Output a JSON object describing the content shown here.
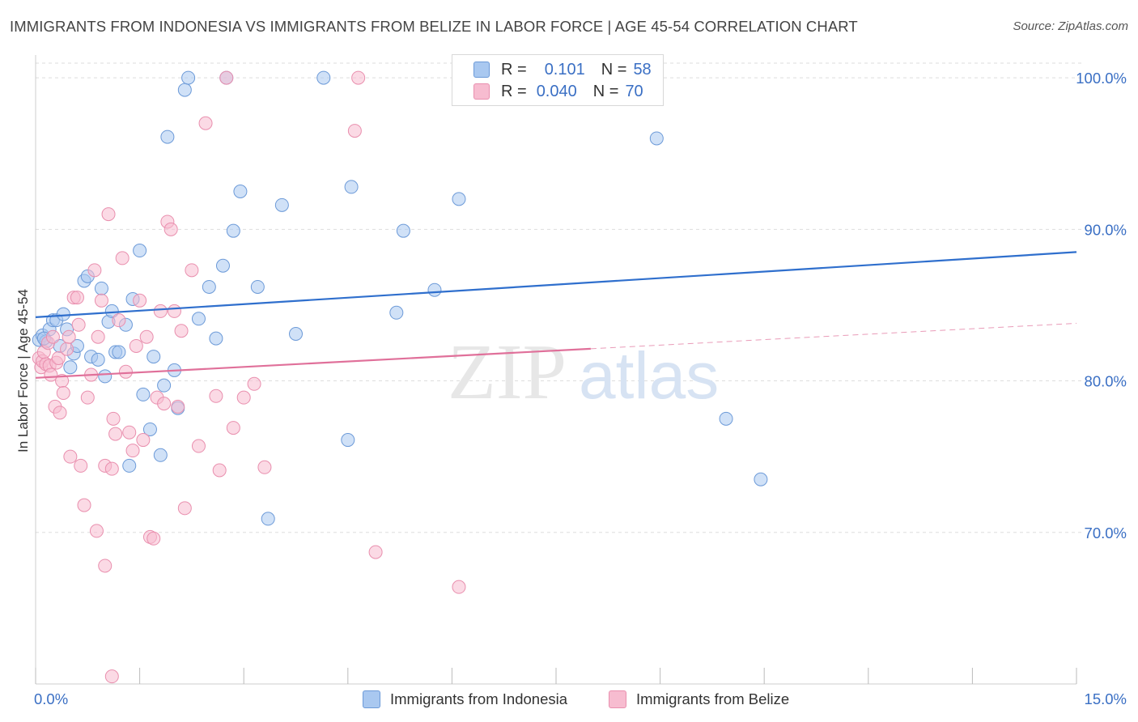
{
  "title": "IMMIGRANTS FROM INDONESIA VS IMMIGRANTS FROM BELIZE IN LABOR FORCE | AGE 45-54 CORRELATION CHART",
  "source": "Source: ZipAtlas.com",
  "watermark": {
    "zip": "ZIP",
    "atlas": "atlas"
  },
  "colors": {
    "indonesia_fill": "#a9c8f0",
    "indonesia_stroke": "#6c9ad8",
    "indonesia_line": "#2f6fcd",
    "belize_fill": "#f7bcd0",
    "belize_stroke": "#e98fae",
    "belize_line": "#e0709a",
    "axis_text": "#3a6fc4",
    "grid": "#dddddd"
  },
  "legend": {
    "indonesia": {
      "r_label": "R =",
      "r_value": "0.101",
      "n_label": "N =",
      "n_value": "58"
    },
    "belize": {
      "r_label": "R =",
      "r_value": "0.040",
      "n_label": "N =",
      "n_value": "70"
    }
  },
  "chart_data": {
    "type": "scatter",
    "title": "IMMIGRANTS FROM INDONESIA VS IMMIGRANTS FROM BELIZE IN LABOR FORCE | AGE 45-54 CORRELATION CHART",
    "xlabel": "",
    "ylabel": "In Labor Force | Age 45-54",
    "xlim": [
      0,
      15
    ],
    "ylim": [
      60,
      101.5
    ],
    "x_tick_labels": [
      "0.0%",
      "15.0%"
    ],
    "y_ticks": [
      70,
      80,
      90,
      100
    ],
    "y_tick_labels": [
      "70.0%",
      "80.0%",
      "90.0%",
      "100.0%"
    ],
    "grid": true,
    "series": [
      {
        "name": "Immigrants from Indonesia",
        "r": 0.101,
        "n": 58,
        "trend": {
          "x": [
            0,
            15
          ],
          "y": [
            84.2,
            88.5
          ],
          "dashed_from": null
        },
        "points": [
          [
            0.05,
            82.7
          ],
          [
            0.1,
            83.0
          ],
          [
            0.15,
            82.6
          ],
          [
            0.2,
            83.4
          ],
          [
            0.25,
            84.0
          ],
          [
            0.3,
            84.0
          ],
          [
            0.35,
            82.3
          ],
          [
            0.4,
            84.4
          ],
          [
            0.45,
            83.4
          ],
          [
            0.5,
            80.9
          ],
          [
            0.55,
            81.8
          ],
          [
            0.6,
            82.3
          ],
          [
            0.7,
            86.6
          ],
          [
            0.75,
            86.9
          ],
          [
            0.8,
            81.6
          ],
          [
            0.9,
            81.4
          ],
          [
            0.95,
            86.1
          ],
          [
            1.05,
            83.9
          ],
          [
            1.1,
            84.6
          ],
          [
            1.15,
            81.9
          ],
          [
            1.2,
            81.9
          ],
          [
            1.3,
            83.7
          ],
          [
            1.35,
            74.4
          ],
          [
            1.4,
            85.4
          ],
          [
            1.5,
            88.6
          ],
          [
            1.55,
            79.1
          ],
          [
            1.65,
            76.8
          ],
          [
            1.7,
            81.6
          ],
          [
            1.8,
            75.1
          ],
          [
            1.85,
            79.7
          ],
          [
            1.9,
            96.1
          ],
          [
            2.0,
            80.7
          ],
          [
            2.05,
            78.2
          ],
          [
            2.15,
            99.2
          ],
          [
            2.2,
            100.0
          ],
          [
            2.35,
            84.1
          ],
          [
            2.5,
            86.2
          ],
          [
            2.6,
            82.8
          ],
          [
            2.7,
            87.6
          ],
          [
            2.75,
            100.0
          ],
          [
            2.85,
            89.9
          ],
          [
            2.95,
            92.5
          ],
          [
            3.2,
            86.2
          ],
          [
            3.35,
            70.9
          ],
          [
            3.55,
            91.6
          ],
          [
            3.75,
            83.1
          ],
          [
            4.15,
            100.0
          ],
          [
            4.5,
            76.1
          ],
          [
            4.55,
            92.8
          ],
          [
            5.2,
            84.5
          ],
          [
            5.3,
            89.9
          ],
          [
            5.75,
            86.0
          ],
          [
            6.1,
            92.0
          ],
          [
            8.95,
            96.0
          ],
          [
            9.95,
            77.5
          ],
          [
            10.45,
            73.5
          ],
          [
            0.12,
            82.8
          ],
          [
            1.0,
            80.3
          ]
        ]
      },
      {
        "name": "Immigrants from Belize",
        "r": 0.04,
        "n": 70,
        "trend": {
          "x": [
            0,
            15
          ],
          "y": [
            80.2,
            83.8
          ],
          "dashed_from": 8.0
        },
        "points": [
          [
            0.05,
            81.5
          ],
          [
            0.08,
            80.9
          ],
          [
            0.1,
            81.3
          ],
          [
            0.12,
            81.9
          ],
          [
            0.15,
            81.1
          ],
          [
            0.18,
            82.5
          ],
          [
            0.2,
            81.0
          ],
          [
            0.22,
            80.4
          ],
          [
            0.25,
            82.9
          ],
          [
            0.28,
            78.3
          ],
          [
            0.3,
            81.2
          ],
          [
            0.33,
            81.5
          ],
          [
            0.35,
            77.9
          ],
          [
            0.38,
            80.0
          ],
          [
            0.4,
            79.2
          ],
          [
            0.45,
            82.1
          ],
          [
            0.48,
            82.9
          ],
          [
            0.5,
            75.0
          ],
          [
            0.55,
            85.5
          ],
          [
            0.6,
            85.5
          ],
          [
            0.62,
            83.7
          ],
          [
            0.65,
            74.4
          ],
          [
            0.7,
            71.8
          ],
          [
            0.75,
            78.9
          ],
          [
            0.8,
            80.4
          ],
          [
            0.85,
            87.3
          ],
          [
            0.88,
            70.1
          ],
          [
            0.9,
            82.9
          ],
          [
            0.95,
            85.3
          ],
          [
            1.0,
            74.4
          ],
          [
            1.05,
            91.0
          ],
          [
            1.1,
            74.2
          ],
          [
            1.12,
            77.5
          ],
          [
            1.15,
            76.5
          ],
          [
            1.2,
            84.0
          ],
          [
            1.25,
            88.1
          ],
          [
            1.3,
            80.6
          ],
          [
            1.35,
            76.6
          ],
          [
            1.4,
            75.4
          ],
          [
            1.45,
            82.3
          ],
          [
            1.5,
            85.3
          ],
          [
            1.55,
            76.1
          ],
          [
            1.6,
            82.9
          ],
          [
            1.65,
            69.7
          ],
          [
            1.7,
            69.6
          ],
          [
            1.75,
            78.9
          ],
          [
            1.8,
            84.6
          ],
          [
            1.85,
            78.5
          ],
          [
            1.9,
            90.5
          ],
          [
            1.95,
            90.0
          ],
          [
            2.0,
            84.6
          ],
          [
            2.05,
            78.3
          ],
          [
            2.1,
            83.3
          ],
          [
            2.15,
            71.6
          ],
          [
            2.25,
            87.3
          ],
          [
            2.35,
            75.7
          ],
          [
            2.45,
            97.0
          ],
          [
            2.6,
            79.0
          ],
          [
            2.65,
            74.1
          ],
          [
            2.75,
            100.0
          ],
          [
            2.85,
            76.9
          ],
          [
            3.0,
            78.9
          ],
          [
            3.15,
            79.8
          ],
          [
            3.3,
            74.3
          ],
          [
            4.6,
            96.5
          ],
          [
            4.65,
            100.0
          ],
          [
            4.9,
            68.7
          ],
          [
            6.1,
            66.4
          ],
          [
            1.0,
            67.8
          ],
          [
            1.1,
            60.5
          ]
        ]
      }
    ]
  },
  "bottom_legend": {
    "indonesia_label": "Immigrants from Indonesia",
    "belize_label": "Immigrants from Belize"
  }
}
